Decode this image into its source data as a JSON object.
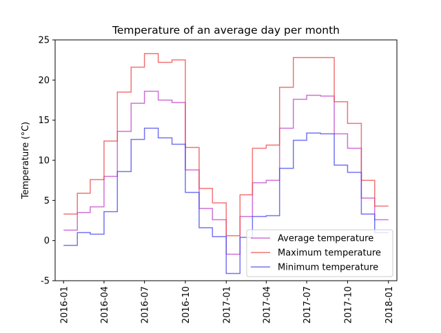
{
  "chart_data": {
    "type": "line",
    "step": "post",
    "title": "Temperature of an average day per month",
    "xlabel": "",
    "ylabel": "Temperature (°C)",
    "ylim": [
      -5,
      25
    ],
    "yticks": [
      -5,
      0,
      5,
      10,
      15,
      20,
      25
    ],
    "xlim": [
      "2015-12-13",
      "2018-01-20"
    ],
    "xticks": [
      "2016-01",
      "2016-04",
      "2016-07",
      "2016-10",
      "2017-01",
      "2017-04",
      "2017-07",
      "2017-10",
      "2018-01"
    ],
    "x": [
      "2016-01",
      "2016-02",
      "2016-03",
      "2016-04",
      "2016-05",
      "2016-06",
      "2016-07",
      "2016-08",
      "2016-09",
      "2016-10",
      "2016-11",
      "2016-12",
      "2017-01",
      "2017-02",
      "2017-03",
      "2017-04",
      "2017-05",
      "2017-06",
      "2017-07",
      "2017-08",
      "2017-09",
      "2017-10",
      "2017-11",
      "2017-12",
      "2018-01"
    ],
    "grid": false,
    "legend_position": "lower-right",
    "series": [
      {
        "name": "Average temperature",
        "color": "#c040c8",
        "values": [
          1.3,
          3.5,
          4.2,
          8.0,
          13.6,
          17.1,
          18.6,
          17.5,
          17.2,
          8.8,
          4.0,
          2.6,
          -1.7,
          3.0,
          7.2,
          7.5,
          14.0,
          17.6,
          18.1,
          18.0,
          13.3,
          11.5,
          5.3,
          2.6,
          2.6
        ]
      },
      {
        "name": "Maximum temperature",
        "color": "#ee4444",
        "values": [
          3.3,
          5.9,
          7.6,
          12.4,
          18.5,
          21.6,
          23.3,
          22.2,
          22.5,
          11.6,
          6.5,
          4.7,
          0.6,
          5.7,
          11.5,
          11.9,
          19.1,
          22.8,
          22.8,
          22.8,
          17.3,
          14.6,
          7.5,
          4.3,
          4.3
        ]
      },
      {
        "name": "Minimum temperature",
        "color": "#4444ee",
        "values": [
          -0.6,
          1.0,
          0.8,
          3.6,
          8.6,
          12.6,
          14.0,
          12.8,
          12.0,
          6.0,
          1.6,
          0.5,
          -4.1,
          0.4,
          3.0,
          3.1,
          9.0,
          12.5,
          13.4,
          13.3,
          9.4,
          8.5,
          3.3,
          1.0,
          1.0
        ]
      }
    ]
  }
}
